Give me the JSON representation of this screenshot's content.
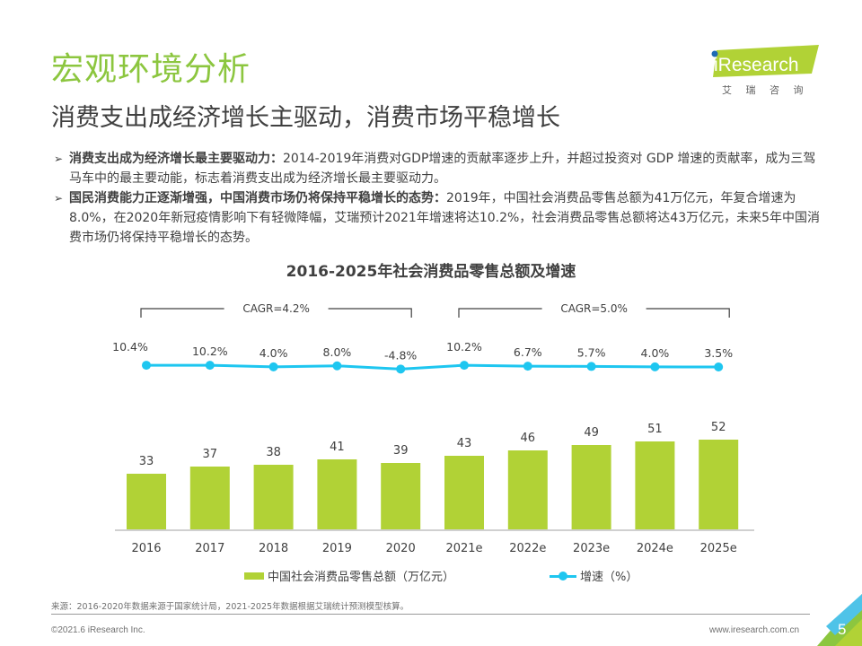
{
  "header": {
    "title": "宏观环境分析",
    "subtitle": "消费支出成经济增长主驱动，消费市场平稳增长"
  },
  "logo": {
    "brand": "iResearch",
    "brand_cn": "艾 瑞 咨 询",
    "brand_color": "#b1d236",
    "dot_color": "#1f6bb5"
  },
  "bullets": [
    {
      "icon": "arrow-right-icon",
      "bold": "消费支出成为经济增长最主要驱动力：",
      "text": "2014-2019年消费对GDP增速的贡献率逐步上升，并超过投资对 GDP 增速的贡献率，成为三驾马车中的最主要动能，标志着消费支出成为经济增长最主要驱动力。"
    },
    {
      "icon": "arrow-right-icon",
      "bold": "国民消费能力正逐渐增强，中国消费市场仍将保持平稳增长的态势：",
      "text": "2019年，中国社会消费品零售总额为41万亿元，年复合增速为8.0%，在2020年新冠疫情影响下有轻微降幅，艾瑞预计2021年增速将达10.2%，社会消费品零售总额将达43万亿元，未来5年中国消费市场仍将保持平稳增长的态势。"
    }
  ],
  "chart_data": {
    "type": "bar",
    "title": "2016-2025年社会消费品零售总额及增速",
    "categories": [
      "2016",
      "2017",
      "2018",
      "2019",
      "2020",
      "2021e",
      "2022e",
      "2023e",
      "2024e",
      "2025e"
    ],
    "series": [
      {
        "name": "中国社会消费品零售总额（万亿元）",
        "type": "bar",
        "color": "#b1d236",
        "values": [
          33,
          37,
          38,
          41,
          39,
          43,
          46,
          49,
          51,
          52
        ],
        "labels": [
          "33",
          "37",
          "38",
          "41",
          "39",
          "43",
          "46",
          "49",
          "51",
          "52"
        ]
      },
      {
        "name": "增速（%）",
        "type": "line",
        "color": "#1ec6f0",
        "values": [
          10.4,
          10.2,
          4.0,
          8.0,
          -4.8,
          10.2,
          6.7,
          5.7,
          4.0,
          3.5
        ],
        "labels": [
          "10.4%",
          "10.2%",
          "4.0%",
          "8.0%",
          "-4.8%",
          "10.2%",
          "6.7%",
          "5.7%",
          "4.0%",
          "3.5%"
        ]
      }
    ],
    "annotations": [
      {
        "label": "CAGR=4.2%",
        "from": "2016",
        "to": "2020"
      },
      {
        "label": "CAGR=5.0%",
        "from": "2021e",
        "to": "2025e"
      }
    ],
    "legend_position": "bottom",
    "grid": false
  },
  "footer": {
    "source": "来源：2016-2020年数据来源于国家统计局，2021-2025年数据根据艾瑞统计预测模型核算。",
    "copyright": "©2021.6 iResearch Inc.",
    "website": "www.iresearch.com.cn",
    "page_number": "5"
  }
}
